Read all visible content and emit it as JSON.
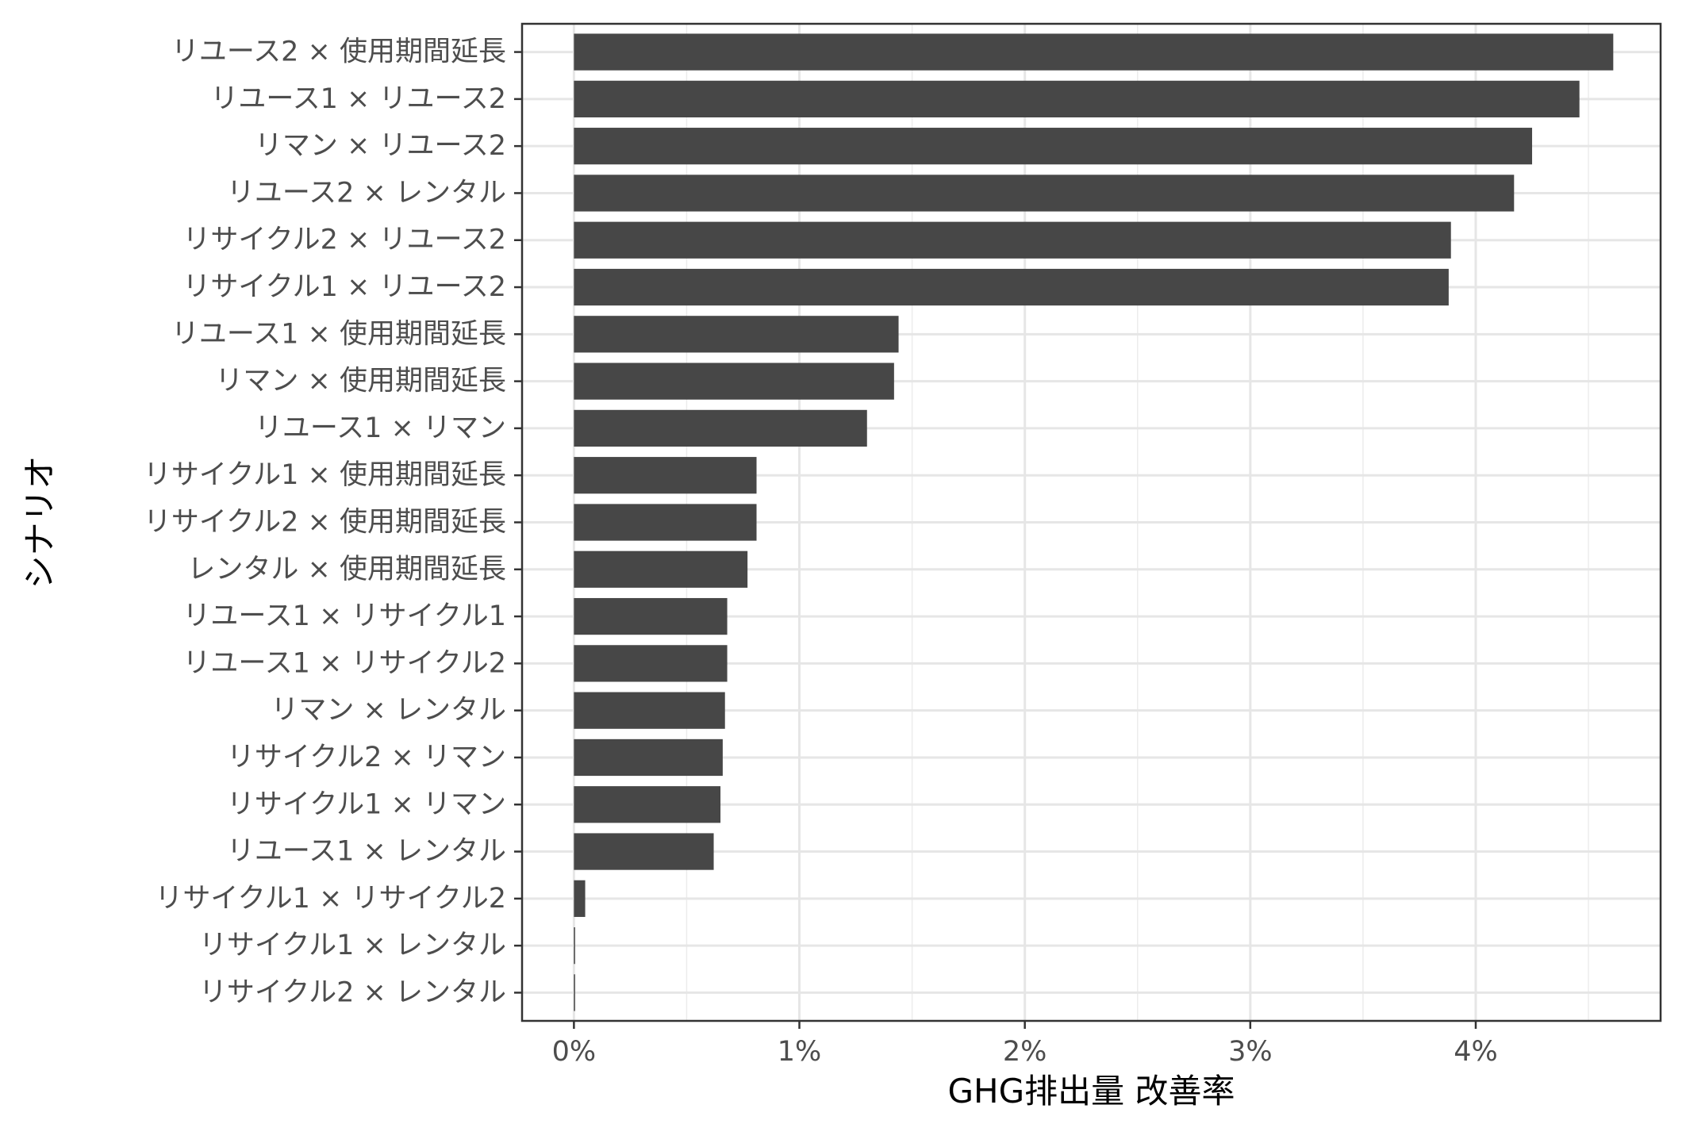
{
  "chart_data": {
    "type": "bar",
    "orientation": "horizontal",
    "xlabel": "GHG排出量 改善率",
    "ylabel": "シナリオ",
    "xlim": [
      -0.23,
      4.82
    ],
    "x_ticks": [
      0,
      1,
      2,
      3,
      4
    ],
    "x_tick_labels": [
      "0%",
      "1%",
      "2%",
      "3%",
      "4%"
    ],
    "grid": true,
    "categories": [
      "リユース2 × 使用期間延長",
      "リユース1 × リユース2",
      "リマン × リユース2",
      "リユース2 × レンタル",
      "リサイクル2 × リユース2",
      "リサイクル1 × リユース2",
      "リユース1 × 使用期間延長",
      "リマン × 使用期間延長",
      "リユース1 × リマン",
      "リサイクル1 × 使用期間延長",
      "リサイクル2 × 使用期間延長",
      "レンタル × 使用期間延長",
      "リユース1 × リサイクル1",
      "リユース1 × リサイクル2",
      "リマン × レンタル",
      "リサイクル2 × リマン",
      "リサイクル1 × リマン",
      "リユース1 × レンタル",
      "リサイクル1 × リサイクル2",
      "リサイクル1 × レンタル",
      "リサイクル2 × レンタル"
    ],
    "values": [
      4.61,
      4.46,
      4.25,
      4.17,
      3.89,
      3.88,
      1.44,
      1.42,
      1.3,
      0.81,
      0.81,
      0.77,
      0.68,
      0.68,
      0.67,
      0.66,
      0.65,
      0.62,
      0.05,
      0.005,
      0.005
    ],
    "bar_color": "#474747"
  }
}
